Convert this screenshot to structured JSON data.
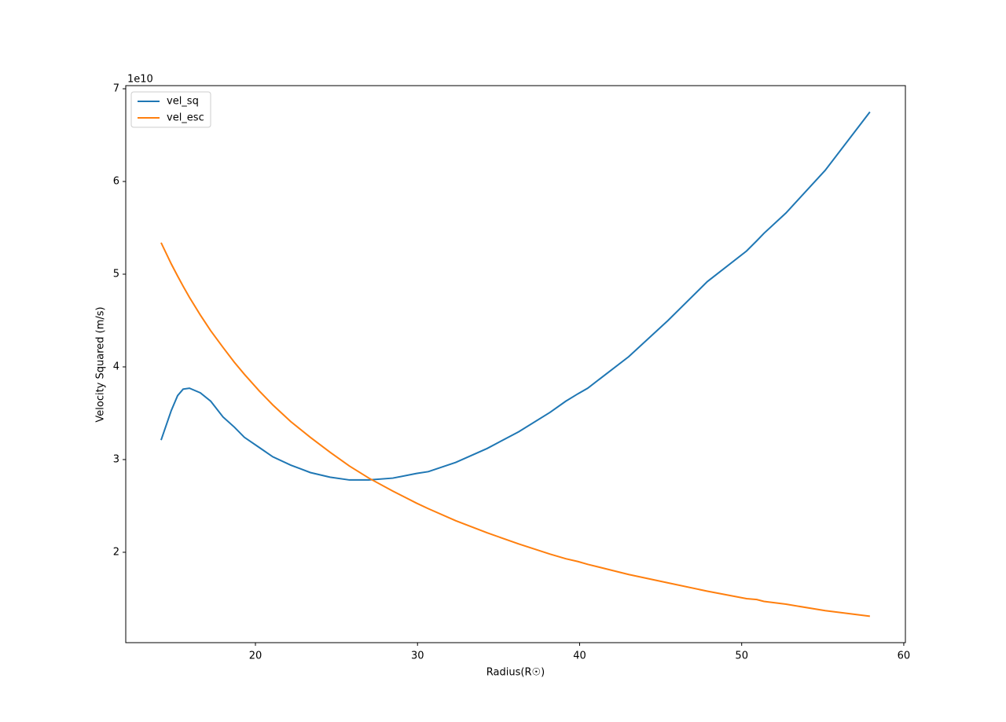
{
  "chart_data": {
    "type": "line",
    "x_label": "Radius(R☉)",
    "y_label": "Velocity Squared (m/s)",
    "y_offset_label": "1e10",
    "x": [
      14.18,
      14.81,
      15.2,
      15.54,
      15.93,
      16.6,
      17.24,
      18.0,
      18.7,
      19.32,
      20.24,
      21.07,
      22.18,
      23.39,
      24.6,
      25.8,
      27.0,
      28.48,
      29.94,
      30.67,
      32.36,
      34.3,
      36.24,
      38.18,
      39.15,
      39.9,
      40.5,
      43.03,
      45.45,
      47.88,
      50.3,
      50.93,
      51.37,
      52.73,
      55.15,
      57.91
    ],
    "series": [
      {
        "name": "vel_sq",
        "color": "#1f77b4",
        "values": [
          32100000000.0,
          35300000000.0,
          36900000000.0,
          37600000000.0,
          37700000000.0,
          37200000000.0,
          36300000000.0,
          34600000000.0,
          33500000000.0,
          32400000000.0,
          31300000000.0,
          30300000000.0,
          29400000000.0,
          28600000000.0,
          28100000000.0,
          27800000000.0,
          27800000000.0,
          28000000000.0,
          28500000000.0,
          28700000000.0,
          29700000000.0,
          31200000000.0,
          33000000000.0,
          35100000000.0,
          36300000000.0,
          37100000000.0,
          37700000000.0,
          41100000000.0,
          45000000000.0,
          49200000000.0,
          52500000000.0,
          53600000000.0,
          54400000000.0,
          56600000000.0,
          61200000000.0,
          67500000000.0
        ]
      },
      {
        "name": "vel_esc",
        "color": "#ff7f0e",
        "values": [
          53400000000.0,
          51100000000.0,
          49800000000.0,
          48700000000.0,
          47500000000.0,
          45600000000.0,
          43900000000.0,
          42100000000.0,
          40500000000.0,
          39200000000.0,
          37400000000.0,
          35900000000.0,
          34100000000.0,
          32400000000.0,
          30800000000.0,
          29300000000.0,
          28000000000.0,
          26600000000.0,
          25300000000.0,
          24700000000.0,
          23400000000.0,
          22100000000.0,
          20900000000.0,
          19800000000.0,
          19300000000.0,
          19000000000.0,
          18700000000.0,
          17600000000.0,
          16700000000.0,
          15800000000.0,
          15000000000.0,
          14900000000.0,
          14700000000.0,
          14400000000.0,
          13700000000.0,
          13100000000.0
        ]
      }
    ],
    "xlim": [
      12.0,
      60.1
    ],
    "xticks": [
      20,
      30,
      40,
      50,
      60
    ],
    "ylim": [
      10250000000.0,
      70340000000.0
    ],
    "yticks": [
      {
        "value": 20000000000.0,
        "label": "2"
      },
      {
        "value": 30000000000.0,
        "label": "3"
      },
      {
        "value": 40000000000.0,
        "label": "4"
      },
      {
        "value": 50000000000.0,
        "label": "5"
      },
      {
        "value": 60000000000.0,
        "label": "6"
      },
      {
        "value": 70000000000.0,
        "label": "7"
      }
    ],
    "legend": "upper left",
    "grid": false
  }
}
